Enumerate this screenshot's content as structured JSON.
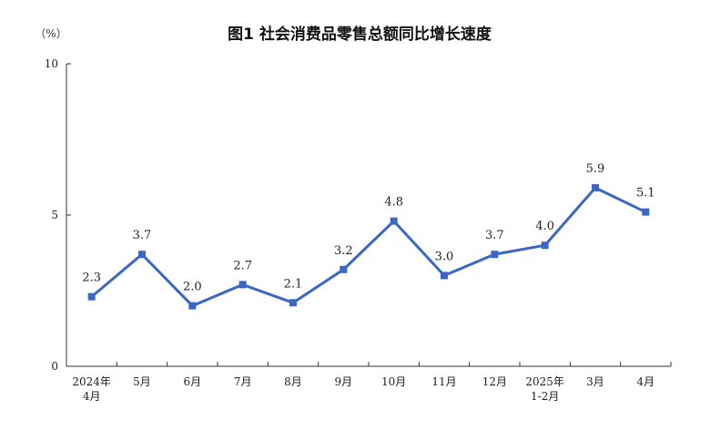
{
  "chart_data": {
    "type": "line",
    "title": "图1 社会消费品零售总额同比增长速度",
    "unit": "（%）",
    "categories": [
      [
        "2024年",
        "4月"
      ],
      [
        "5月"
      ],
      [
        "6月"
      ],
      [
        "7月"
      ],
      [
        "8月"
      ],
      [
        "9月"
      ],
      [
        "10月"
      ],
      [
        "11月"
      ],
      [
        "12月"
      ],
      [
        "2025年",
        "1-2月"
      ],
      [
        "3月"
      ],
      [
        "4月"
      ]
    ],
    "series": [
      {
        "values": [
          2.3,
          3.7,
          2.0,
          2.7,
          2.1,
          3.2,
          4.8,
          3.0,
          3.7,
          4.0,
          5.9,
          5.1
        ],
        "labels": [
          "2.3",
          "3.7",
          "2.0",
          "2.7",
          "2.1",
          "3.2",
          "4.8",
          "3.0",
          "3.7",
          "4.0",
          "5.9",
          "5.1"
        ],
        "color": "#3a66c4"
      }
    ],
    "ylim": [
      0,
      10
    ],
    "yticks": [
      0,
      5,
      10
    ],
    "ytick_labels": [
      "0",
      "5",
      "10"
    ],
    "grid": false,
    "legend": "none"
  }
}
